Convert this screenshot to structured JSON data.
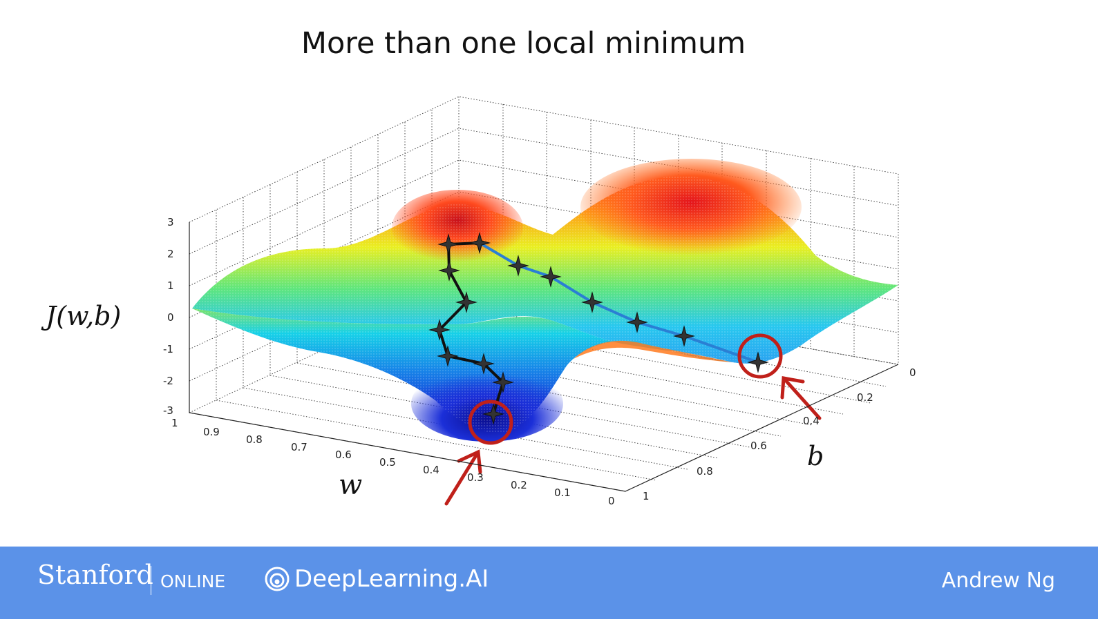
{
  "slide": {
    "title": "More than one local minimum",
    "z_label": "J(w,b)",
    "w_label": "w",
    "b_label": "b",
    "z_ticks": [
      "3",
      "2",
      "1",
      "0",
      "-1",
      "-2",
      "-3"
    ],
    "w_ticks": [
      "1",
      "0.9",
      "0.8",
      "0.7",
      "0.6",
      "0.5",
      "0.4",
      "0.3",
      "0.2",
      "0.1",
      "0"
    ],
    "b_ticks": [
      "0",
      "0.2",
      "0.4",
      "0.6",
      "0.8",
      "1"
    ]
  },
  "footer": {
    "stanford": "Stanford",
    "online": "ONLINE",
    "brand": "DeepLearning.AI",
    "presenter": "Andrew Ng"
  },
  "colors": {
    "footer_bg": "#5b92e8",
    "path_left": "#111111",
    "path_right": "#2a7fd4",
    "marker": "#c0201a"
  }
}
